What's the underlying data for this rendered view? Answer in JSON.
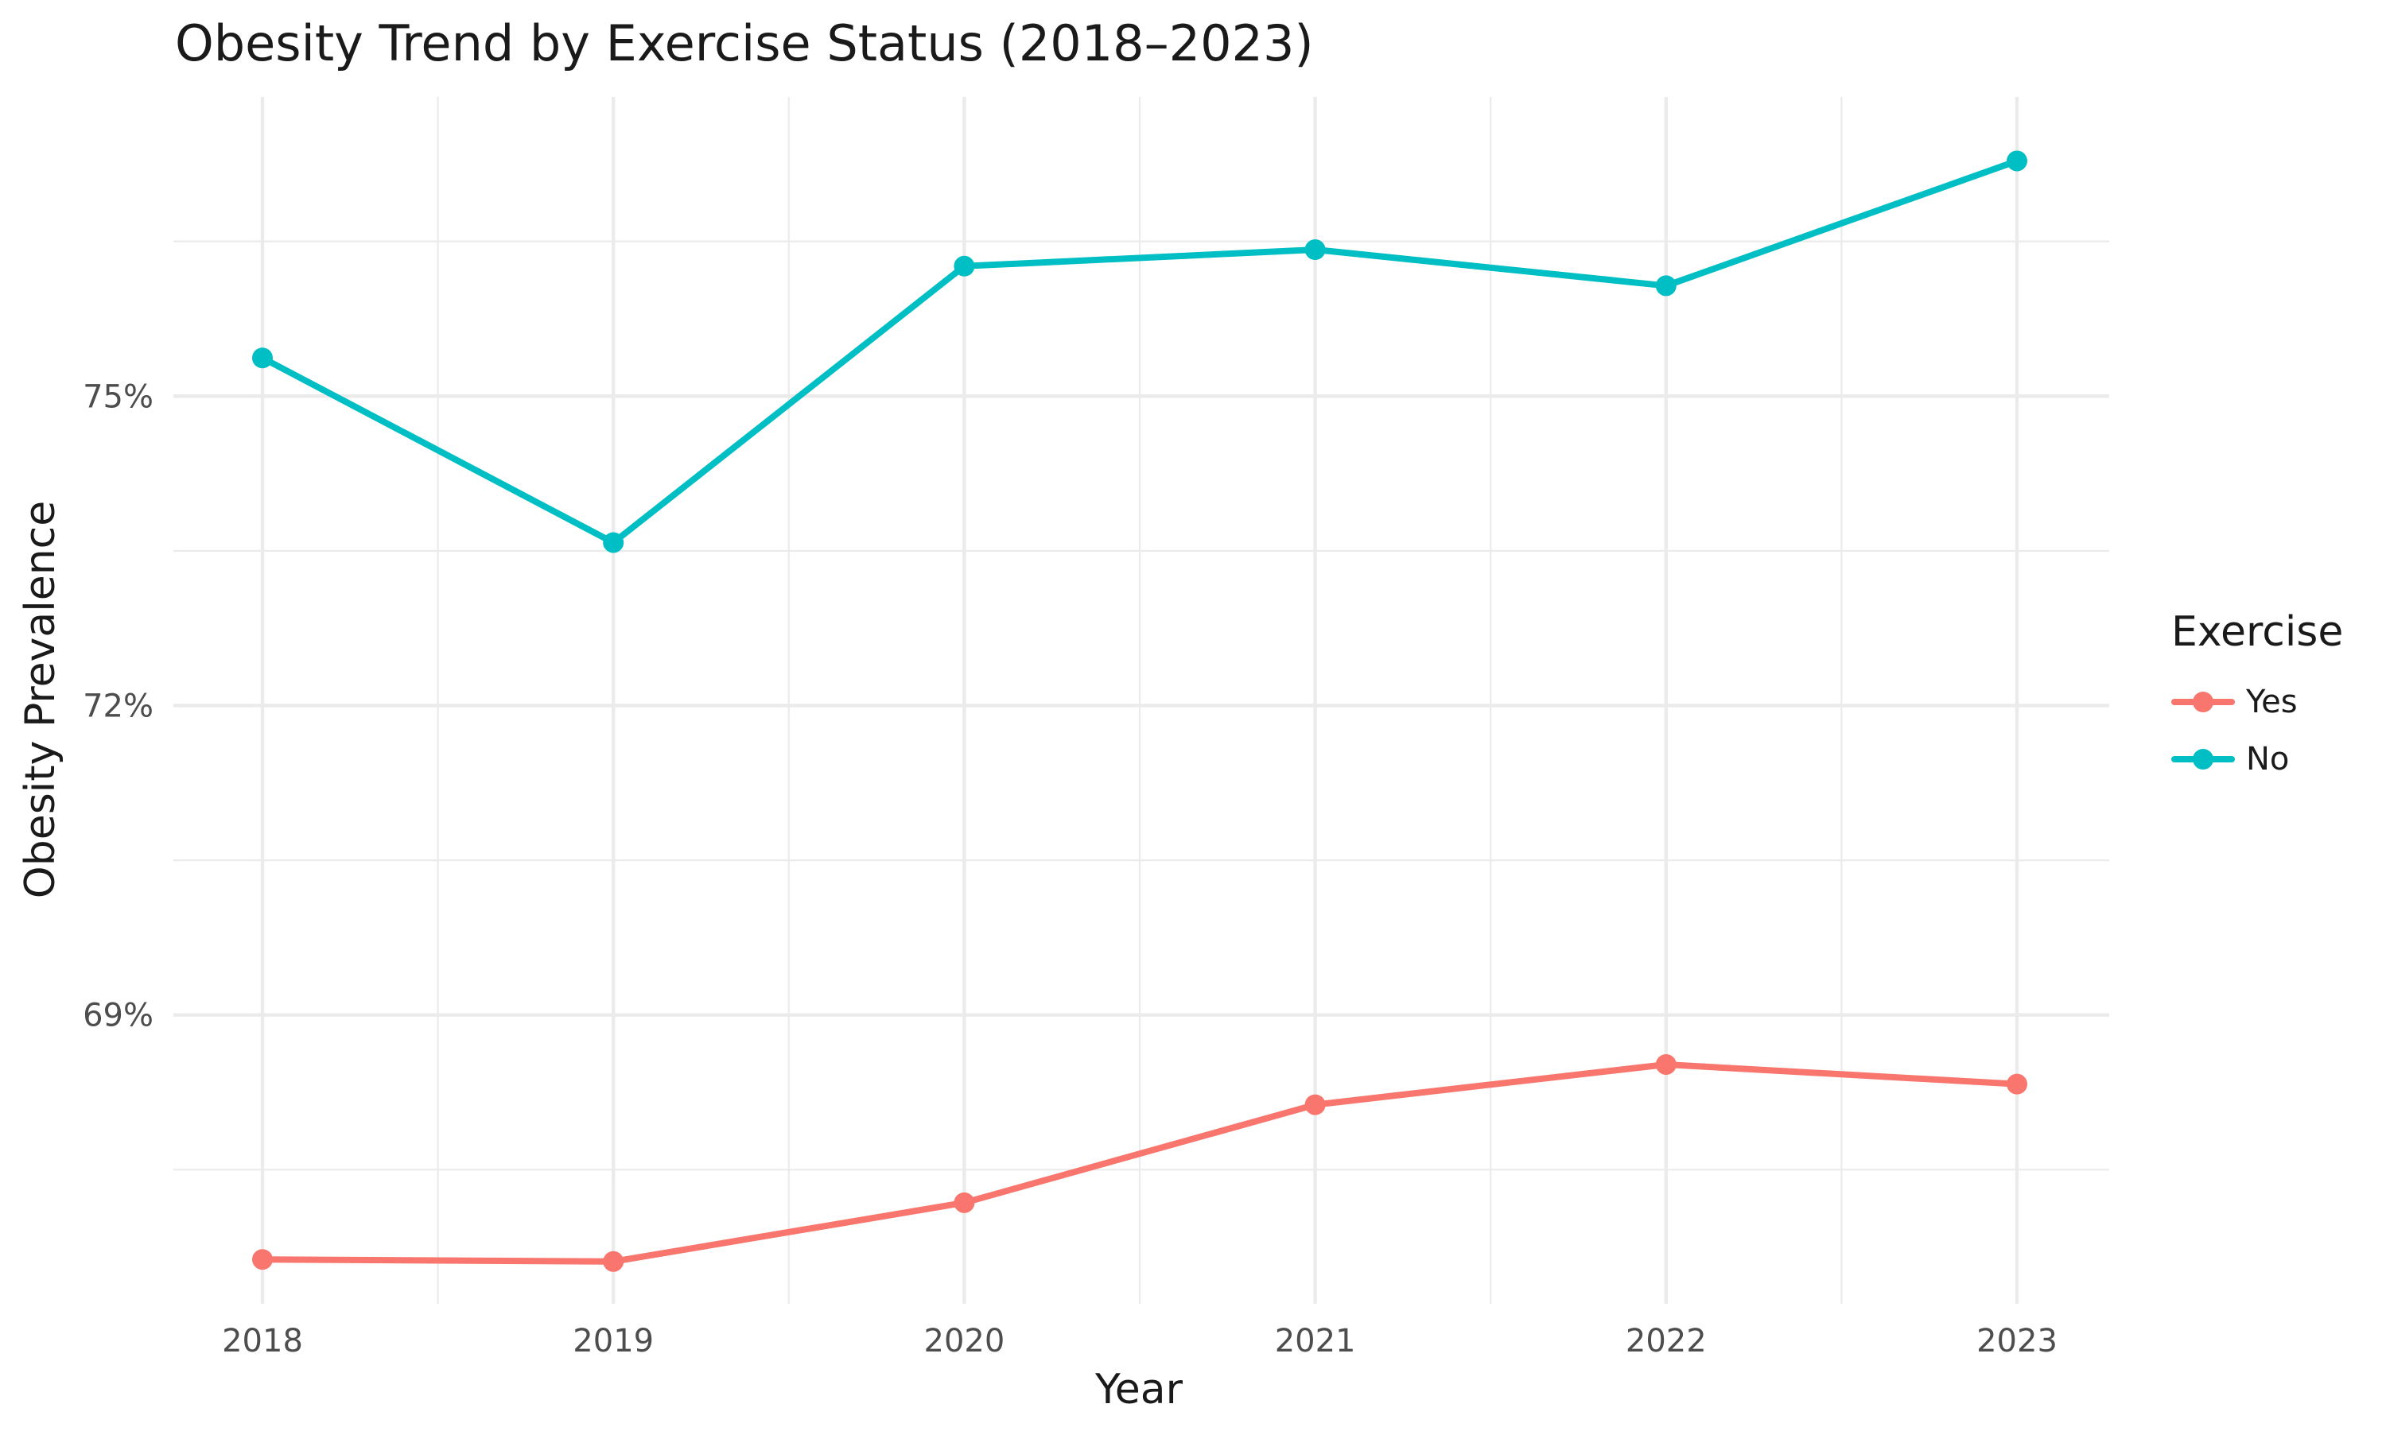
{
  "chart_data": {
    "type": "line",
    "title": "Obesity Trend by Exercise Status (2018–2023)",
    "xlabel": "Year",
    "ylabel": "Obesity Prevalence",
    "x": [
      "2018",
      "2019",
      "2020",
      "2021",
      "2022",
      "2023"
    ],
    "y_ticks": [
      69,
      72,
      75
    ],
    "y_tick_labels": [
      "69%",
      "72%",
      "75%"
    ],
    "ylim": [
      66.2,
      77.9
    ],
    "grid": true,
    "legend": {
      "title": "Exercise",
      "position": "right"
    },
    "series": [
      {
        "name": "Yes",
        "color": "#F8766D",
        "values": [
          66.63,
          66.61,
          67.18,
          68.13,
          68.52,
          68.33
        ]
      },
      {
        "name": "No",
        "color": "#00BFC4",
        "values": [
          75.37,
          73.58,
          76.26,
          76.42,
          76.07,
          77.28
        ]
      }
    ]
  }
}
